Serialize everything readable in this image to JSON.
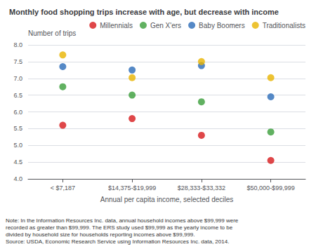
{
  "chart_data": {
    "type": "scatter",
    "title": "Monthly food shopping trips increase with age, but decrease with income",
    "ylabel": "Number of trips",
    "xlabel": "Annual per capita income, selected deciles",
    "categories": [
      "< $7,187",
      "$14,375-$19,999",
      "$28,333-$33,332",
      "$50,000-$99,999"
    ],
    "series": [
      {
        "name": "Millennials",
        "color": "#d7191c",
        "values": [
          5.6,
          5.8,
          5.3,
          4.55
        ]
      },
      {
        "name": "Gen X'ers",
        "color": "#3a9e3a",
        "values": [
          6.75,
          6.5,
          6.3,
          5.4
        ]
      },
      {
        "name": "Baby Boomers",
        "color": "#2b6cb8",
        "values": [
          7.35,
          7.25,
          7.38,
          6.45
        ]
      },
      {
        "name": "Traditionalists",
        "color": "#e8b400",
        "values": [
          7.7,
          7.02,
          7.5,
          7.02
        ]
      }
    ],
    "ylim": [
      4.0,
      8.0
    ],
    "yticks": [
      {
        "value": 4,
        "label": "4.0"
      },
      4.5,
      {
        "value": 5,
        "label": "5.0"
      },
      5.5,
      {
        "value": 6,
        "label": "6.0"
      },
      6.5,
      {
        "value": 7,
        "label": "7.0"
      },
      7.5,
      {
        "value": 8,
        "label": "8.0"
      }
    ],
    "grid": true,
    "legend": "top",
    "marker": "circle",
    "annotations": [
      "Note: In the Information Resources Inc. data, annual household incomes above $99,999 were",
      "recorded as greater than $99,999. The ERS study used $99,999 as the yearly income to be",
      "divided by household size for households reporting incomes above $99,999.",
      "Source: USDA, Economic Research Service using Information Resources Inc. data, 2014."
    ],
    "background_color": "#ffffff"
  }
}
